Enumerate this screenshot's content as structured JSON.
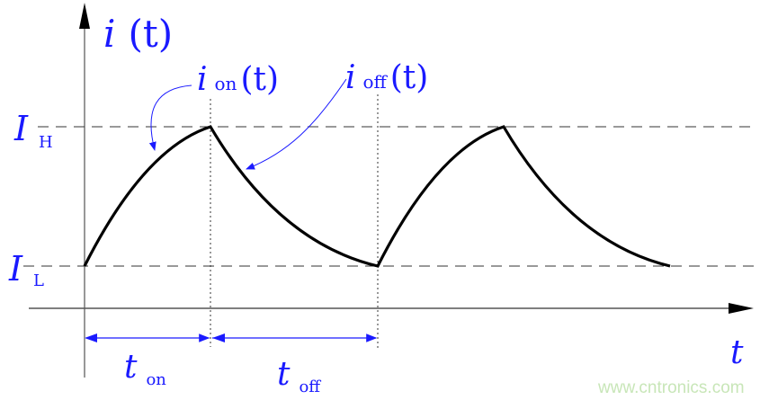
{
  "labels": {
    "y_axis": {
      "main": "i",
      "arg": "(t)"
    },
    "x_axis": "t",
    "i_on": {
      "main": "i",
      "sub": "on",
      "arg": "(t)"
    },
    "i_off": {
      "main": "i",
      "sub": "off",
      "arg": "(t)"
    },
    "I_H": {
      "main": "I",
      "sub": "H"
    },
    "I_L": {
      "main": "I",
      "sub": "L"
    },
    "t_on": {
      "main": "t",
      "sub": "on"
    },
    "t_off": {
      "main": "t",
      "sub": "off"
    }
  },
  "watermark": "www.cntronics.com",
  "colors": {
    "label": "#1a1aff",
    "curve": "#000000",
    "axis": "#555555",
    "watermark": "#c8e6b8"
  }
}
